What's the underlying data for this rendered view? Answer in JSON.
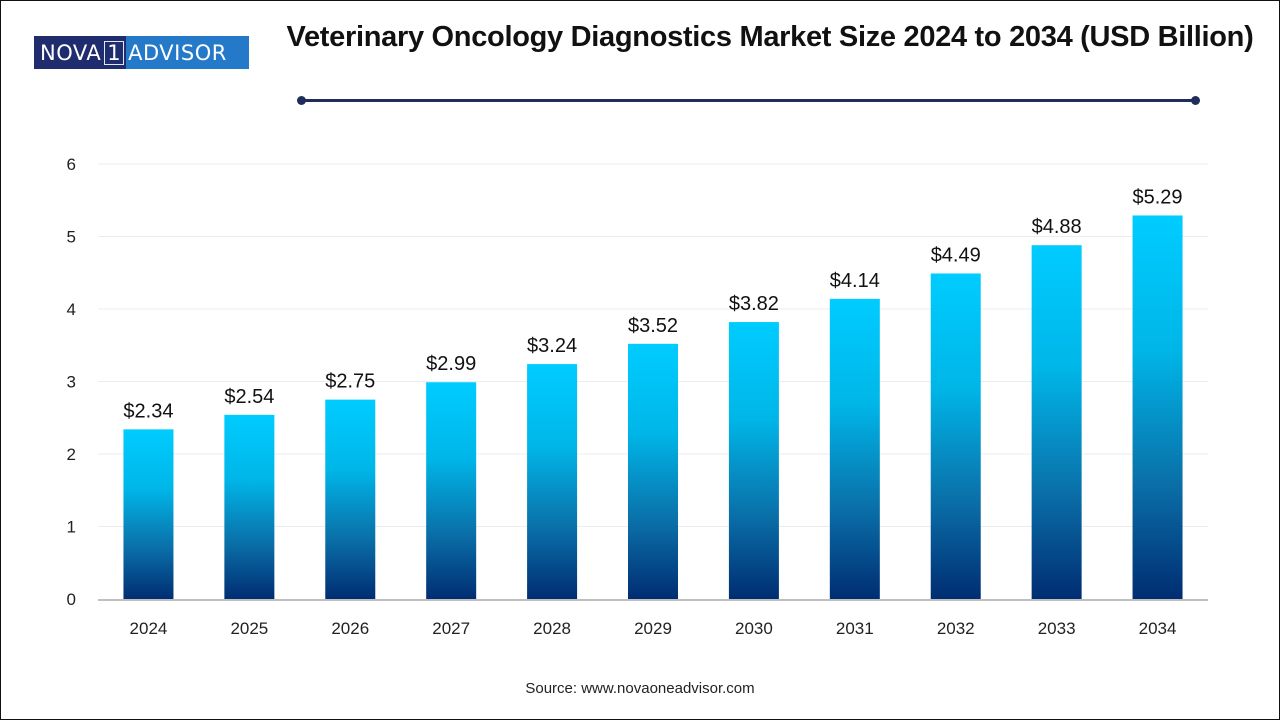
{
  "logo": {
    "part1": "NOVA",
    "part2": "1",
    "part3": "ADVISOR"
  },
  "source": "Source: www.novaoneadvisor.com",
  "colors": {
    "bar_top": "#00ccff",
    "bar_bottom": "#002d72",
    "rule": "#1f2d5c",
    "grid": "#ececec",
    "axis": "#bfbfbf"
  },
  "chart_data": {
    "type": "bar",
    "title": "Veterinary Oncology Diagnostics Market Size 2024 to 2034 (USD Billion)",
    "xlabel": "",
    "ylabel": "",
    "categories": [
      "2024",
      "2025",
      "2026",
      "2027",
      "2028",
      "2029",
      "2030",
      "2031",
      "2032",
      "2033",
      "2034"
    ],
    "values": [
      2.34,
      2.54,
      2.75,
      2.99,
      3.24,
      3.52,
      3.82,
      4.14,
      4.49,
      4.88,
      5.29
    ],
    "data_labels": [
      "$2.34",
      "$2.54",
      "$2.75",
      "$2.99",
      "$3.24",
      "$3.52",
      "$3.82",
      "$4.14",
      "$4.49",
      "$4.88",
      "$5.29"
    ],
    "ylim": [
      0,
      6
    ],
    "yticks": [
      0,
      1,
      2,
      3,
      4,
      5,
      6
    ],
    "grid": true,
    "legend": "none"
  }
}
